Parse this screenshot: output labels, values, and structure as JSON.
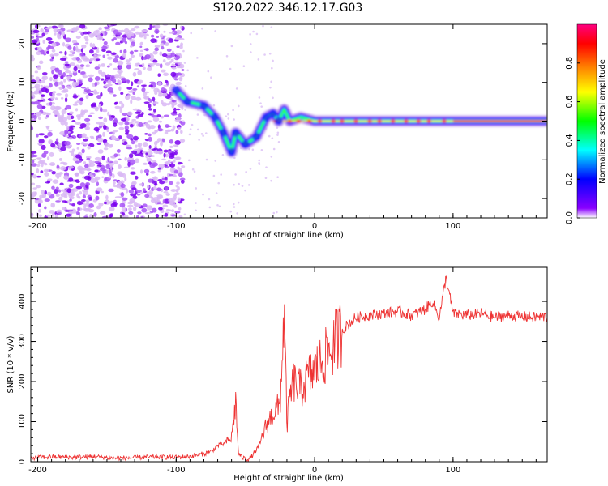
{
  "title": "S120.2022.346.12.17.G03",
  "chart_data": [
    {
      "type": "heatmap",
      "title": "S120.2022.346.12.17.G03",
      "xlabel": "Height of straight line (km)",
      "ylabel": "Frequency (Hz)",
      "xlim": [
        -205,
        168
      ],
      "ylim": [
        -25,
        25
      ],
      "xticks": [
        -200,
        -100,
        0,
        100
      ],
      "xtick_labels": [
        "-200",
        "-100",
        "0",
        "100"
      ],
      "yticks": [
        -20,
        -10,
        0,
        10,
        20
      ],
      "ytick_labels": [
        "-20",
        "-10",
        "0",
        "10",
        "20"
      ],
      "ridge": [
        {
          "x": -100,
          "y": 8
        },
        {
          "x": -92,
          "y": 5
        },
        {
          "x": -80,
          "y": 4
        },
        {
          "x": -72,
          "y": 1
        },
        {
          "x": -66,
          "y": -3
        },
        {
          "x": -60,
          "y": -8
        },
        {
          "x": -57,
          "y": -3
        },
        {
          "x": -50,
          "y": -6
        },
        {
          "x": -42,
          "y": -4
        },
        {
          "x": -35,
          "y": 1
        },
        {
          "x": -30,
          "y": 2
        },
        {
          "x": -26,
          "y": 0
        },
        {
          "x": -22,
          "y": 3
        },
        {
          "x": -18,
          "y": 0
        },
        {
          "x": -10,
          "y": 1
        },
        {
          "x": 0,
          "y": 0
        },
        {
          "x": 50,
          "y": 0
        },
        {
          "x": 100,
          "y": 0
        },
        {
          "x": 168,
          "y": 0
        }
      ],
      "colorbar": {
        "label": "Normalized spectral amplitude",
        "range": [
          0,
          1
        ],
        "ticks": [
          0,
          0.2,
          0.4,
          0.6,
          0.8
        ],
        "tick_labels": [
          "0.0",
          "0.2",
          "0.4",
          "0.6",
          "0.8"
        ],
        "colors": [
          "#ffffff",
          "#8a00ff",
          "#0000ff",
          "#00ffff",
          "#00ff00",
          "#ffff00",
          "#ff7f00",
          "#ff0000",
          "#ff0080"
        ]
      }
    },
    {
      "type": "line",
      "xlabel": "Height of straight line (km)",
      "ylabel": "SNR (10 * v/v)",
      "xlim": [
        -205,
        168
      ],
      "ylim": [
        0,
        485
      ],
      "xticks": [
        -200,
        -100,
        0,
        100
      ],
      "xtick_labels": [
        "-200",
        "-100",
        "0",
        "100"
      ],
      "yticks": [
        0,
        100,
        200,
        300,
        400
      ],
      "ytick_labels": [
        "0",
        "100",
        "200",
        "300",
        "400"
      ],
      "color": "#ee3333",
      "series": [
        {
          "name": "SNR",
          "x": [
            -205,
            -190,
            -175,
            -160,
            -145,
            -130,
            -115,
            -100,
            -90,
            -80,
            -75,
            -70,
            -65,
            -60,
            -57,
            -55,
            -52,
            -48,
            -45,
            -40,
            -38,
            -35,
            -30,
            -25,
            -22,
            -20,
            -18,
            -15,
            -10,
            -5,
            0,
            5,
            10,
            15,
            20,
            25,
            30,
            40,
            50,
            60,
            70,
            80,
            85,
            90,
            95,
            100,
            110,
            120,
            130,
            140,
            150,
            160,
            168
          ],
          "values": [
            10,
            12,
            11,
            13,
            9,
            10,
            12,
            11,
            13,
            20,
            25,
            40,
            45,
            60,
            150,
            20,
            10,
            5,
            15,
            40,
            60,
            90,
            120,
            140,
            370,
            90,
            160,
            200,
            180,
            210,
            230,
            250,
            270,
            300,
            330,
            345,
            360,
            365,
            370,
            375,
            365,
            380,
            400,
            360,
            460,
            370,
            365,
            370,
            360,
            365,
            362,
            360,
            362
          ]
        }
      ]
    }
  ]
}
